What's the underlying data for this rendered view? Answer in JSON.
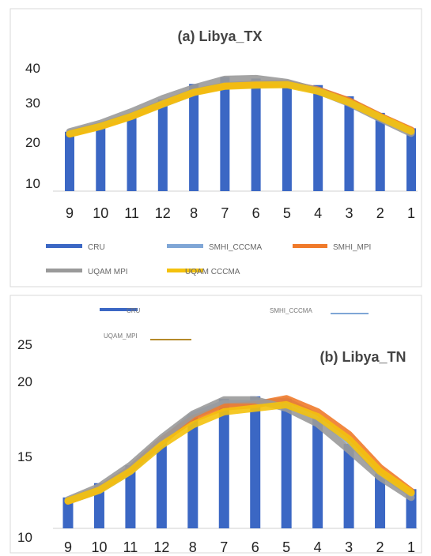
{
  "colors": {
    "CRU": "#3b67c4",
    "SMHI_CCCMA": "#7fa6d6",
    "SMHI_MPI": "#f07a2a",
    "UQAM_MPI": "#9a9a9a",
    "UQAM_CCCMA": "#f4c20d"
  },
  "chart_data": [
    {
      "type": "bar",
      "title": "(a) Libya_TX",
      "categories": [
        "9",
        "10",
        "11",
        "12",
        "8",
        "7",
        "6",
        "5",
        "4",
        "3",
        "2",
        "1"
      ],
      "y_ticks": [
        "40",
        "30",
        "20",
        "10"
      ],
      "ylim": [
        7,
        41
      ],
      "legend": [
        "CRU",
        "SMHI_CCCMA",
        "SMHI_MPI",
        "UQAM MPI",
        "UQAM  CCCMA"
      ],
      "series": [
        {
          "name": "CRU",
          "type": "bar",
          "color": "CRU",
          "values": [
            22.4,
            24.6,
            27.1,
            30.8,
            34.8,
            36.6,
            36.2,
            35.6,
            34.5,
            31.6,
            27.3,
            23.3
          ]
        },
        {
          "name": "SMHI_CCCMA",
          "type": "line",
          "color": "SMHI_CCCMA",
          "values": [
            22.0,
            24.0,
            26.5,
            29.6,
            32.6,
            34.4,
            34.6,
            34.8,
            33.2,
            30.2,
            26.4,
            22.6
          ]
        },
        {
          "name": "SMHI_MPI",
          "type": "line",
          "color": "SMHI_MPI",
          "values": [
            21.9,
            23.9,
            26.5,
            29.8,
            32.7,
            34.3,
            34.8,
            34.9,
            33.2,
            30.4,
            26.4,
            22.8
          ]
        },
        {
          "name": "UQAM MPI",
          "type": "line",
          "color": "UQAM_MPI",
          "values": [
            22.4,
            24.6,
            27.6,
            31.0,
            33.8,
            36.0,
            36.2,
            35.2,
            33.0,
            29.8,
            25.8,
            22.0
          ]
        },
        {
          "name": "UQAM  CCCMA",
          "type": "line",
          "color": "UQAM_CCCMA",
          "values": [
            21.8,
            23.8,
            26.4,
            29.6,
            32.6,
            34.2,
            34.5,
            34.6,
            32.9,
            30.0,
            26.2,
            22.5
          ]
        }
      ]
    },
    {
      "type": "bar",
      "title": "(b) Libya_TN",
      "categories": [
        "9",
        "10",
        "11",
        "12",
        "8",
        "7",
        "6",
        "5",
        "4",
        "3",
        "2",
        "1"
      ],
      "y_ticks": [
        "25",
        "20",
        "15",
        "10"
      ],
      "ylim": [
        10,
        26.2
      ],
      "legend": [
        "CRU",
        "SMHI_CCCMA",
        "UQAM_MPI"
      ],
      "series": [
        {
          "name": "CRU",
          "type": "bar",
          "color": "CRU",
          "values": [
            12.6,
            13.8,
            15.3,
            17.3,
            19.6,
            20.9,
            21.1,
            20.9,
            19.3,
            17.1,
            14.6,
            13.3
          ]
        },
        {
          "name": "SMHI_CCCMA",
          "type": "line",
          "color": "SMHI_CCCMA",
          "values": [
            12.3,
            13.2,
            14.8,
            17.2,
            19.5,
            20.5,
            20.5,
            20.7,
            19.4,
            17.4,
            14.7,
            12.9
          ]
        },
        {
          "name": "SMHI_MPI",
          "type": "line",
          "color": "SMHI_MPI",
          "values": [
            12.3,
            13.3,
            15.0,
            17.4,
            19.2,
            20.2,
            20.4,
            20.9,
            19.8,
            17.9,
            15.1,
            13.1
          ]
        },
        {
          "name": "UQAM_MPI",
          "type": "line",
          "color": "UQAM_MPI",
          "values": [
            12.4,
            13.5,
            15.3,
            17.6,
            19.6,
            20.8,
            20.8,
            20.1,
            18.8,
            16.6,
            14.3,
            12.6
          ]
        },
        {
          "name": "UQAM_CCCMA",
          "type": "line",
          "color": "UQAM_CCCMA",
          "values": [
            12.3,
            13.2,
            14.8,
            17.0,
            18.7,
            19.8,
            20.1,
            20.4,
            19.4,
            17.5,
            14.8,
            13.0
          ]
        }
      ]
    }
  ]
}
